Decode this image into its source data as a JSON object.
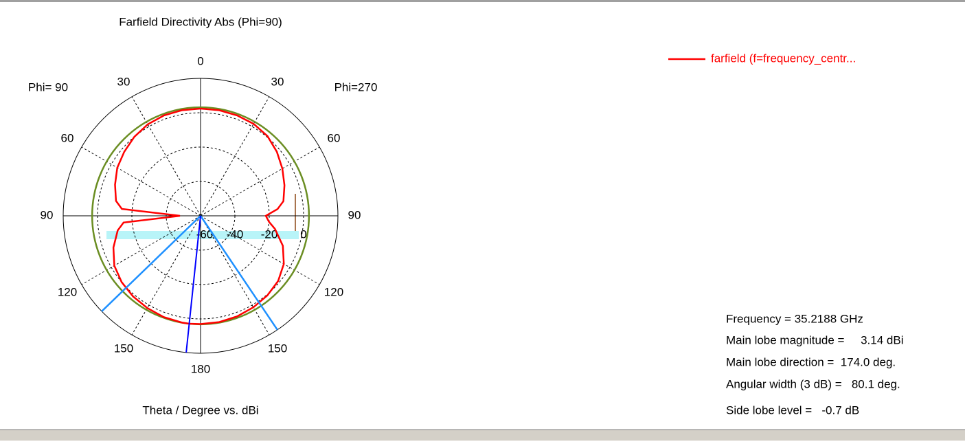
{
  "chart_data": {
    "type": "polar",
    "title": "Farfield Directivity Abs (Phi=90)",
    "x_label": "Theta / Degree vs. dBi",
    "left_label": "Phi= 90",
    "right_label": "Phi=270",
    "x": [
      0,
      10,
      20,
      30,
      40,
      50,
      60,
      70,
      80,
      85,
      90,
      95,
      100,
      110,
      120,
      130,
      140,
      150,
      160,
      170,
      174,
      180,
      190,
      200,
      210,
      220,
      230,
      240,
      250,
      260,
      265,
      270,
      275,
      280,
      290,
      300,
      310,
      320,
      330,
      340,
      350,
      360
    ],
    "series": [
      {
        "name": "farfield (f=frequency_centr...",
        "color": "#ff0000",
        "values": [
          2.4,
          2.4,
          2.2,
          1.5,
          0,
          -2,
          -4,
          -7,
          -10,
          -14,
          -48,
          -15,
          -11,
          -6,
          -2,
          0,
          1.2,
          2.0,
          2.7,
          3.05,
          3.14,
          3.0,
          2.8,
          2.3,
          1.5,
          0.5,
          -1,
          -4,
          -9,
          -16,
          -20,
          -22,
          -15,
          -11,
          -8,
          -5,
          -2,
          0.6,
          1.8,
          2.2,
          2.4,
          2.4
        ]
      }
    ],
    "main_lobe_circle": {
      "color": "#6b8e23",
      "value": 3.14
    },
    "main_lobe_line": {
      "color": "#0000ff",
      "value": 174
    },
    "beam_lines": {
      "color": "#1e90ff",
      "values": [
        134,
        214
      ]
    },
    "rlim": [
      -60,
      20
    ],
    "rticks": [
      -60,
      -40,
      -20,
      0
    ],
    "xticks": [
      0,
      30,
      60,
      90,
      120,
      150,
      180,
      {
        "value": 210,
        "label": "150"
      },
      {
        "value": 240,
        "label": "120"
      },
      {
        "value": 270,
        "label": "90"
      },
      {
        "value": 300,
        "label": "60"
      },
      {
        "value": 330,
        "label": "30"
      }
    ],
    "grid": true,
    "annotations": [
      "Frequency = 35.2188 GHz",
      "Main lobe magnitude =     3.14 dBi",
      "Main lobe direction =  174.0 deg.",
      "Angular width (3 dB) =   80.1 deg.",
      "Side lobe level =   -0.7 dB"
    ]
  }
}
